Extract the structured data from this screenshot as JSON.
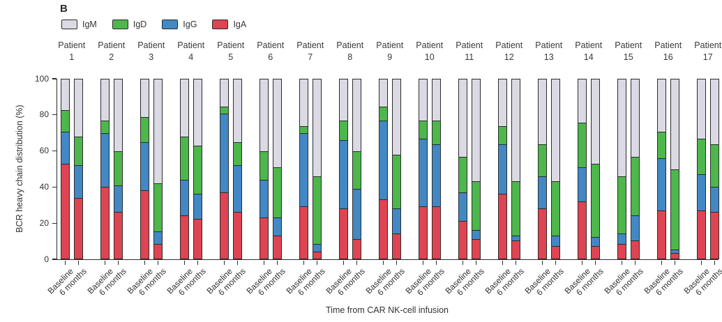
{
  "panel_label": "B",
  "chart_data": {
    "type": "bar",
    "variant": "stacked-percent",
    "title": "",
    "ylabel": "BCR heavy chain distribution (%)",
    "xlabel": "Time from CAR NK-cell infusion",
    "ylim": [
      0,
      100
    ],
    "yticks": [
      0,
      20,
      40,
      60,
      80,
      100
    ],
    "grid": false,
    "legend_position": "top-left",
    "legend": [
      {
        "label": "IgM",
        "color": "#dbdae4"
      },
      {
        "label": "IgD",
        "color": "#4db74c"
      },
      {
        "label": "IgG",
        "color": "#4288c4"
      },
      {
        "label": "IgA",
        "color": "#df4452"
      }
    ],
    "colors": {
      "IgM": "#dbdae4",
      "IgD": "#4db74c",
      "IgG": "#4288c4",
      "IgA": "#df4452"
    },
    "stack_order_bottom_to_top": [
      "IgA",
      "IgG",
      "IgD",
      "IgM"
    ],
    "timepoints": [
      "Baseline",
      "6 months"
    ],
    "group_label_prefix": "Patient",
    "patients": [
      {
        "number": "1",
        "values": {
          "Baseline": {
            "IgA": 53,
            "IgG": 18,
            "IgD": 12,
            "IgM": 17
          },
          "6 months": {
            "IgA": 34,
            "IgG": 18,
            "IgD": 16,
            "IgM": 32
          }
        }
      },
      {
        "number": "2",
        "values": {
          "Baseline": {
            "IgA": 40,
            "IgG": 30,
            "IgD": 7,
            "IgM": 23
          },
          "6 months": {
            "IgA": 26,
            "IgG": 15,
            "IgD": 19,
            "IgM": 40
          }
        }
      },
      {
        "number": "3",
        "values": {
          "Baseline": {
            "IgA": 38,
            "IgG": 27,
            "IgD": 14,
            "IgM": 21
          },
          "6 months": {
            "IgA": 8,
            "IgG": 7,
            "IgD": 27,
            "IgM": 58
          }
        }
      },
      {
        "number": "4",
        "values": {
          "Baseline": {
            "IgA": 24,
            "IgG": 20,
            "IgD": 24,
            "IgM": 32
          },
          "6 months": {
            "IgA": 22,
            "IgG": 14,
            "IgD": 27,
            "IgM": 37
          }
        }
      },
      {
        "number": "5",
        "values": {
          "Baseline": {
            "IgA": 37,
            "IgG": 44,
            "IgD": 4,
            "IgM": 15
          },
          "6 months": {
            "IgA": 26,
            "IgG": 26,
            "IgD": 13,
            "IgM": 35
          }
        }
      },
      {
        "number": "6",
        "values": {
          "Baseline": {
            "IgA": 23,
            "IgG": 21,
            "IgD": 16,
            "IgM": 40
          },
          "6 months": {
            "IgA": 13,
            "IgG": 10,
            "IgD": 28,
            "IgM": 49
          }
        }
      },
      {
        "number": "7",
        "values": {
          "Baseline": {
            "IgA": 29,
            "IgG": 41,
            "IgD": 4,
            "IgM": 26
          },
          "6 months": {
            "IgA": 4,
            "IgG": 4,
            "IgD": 38,
            "IgM": 54
          }
        }
      },
      {
        "number": "8",
        "values": {
          "Baseline": {
            "IgA": 28,
            "IgG": 38,
            "IgD": 11,
            "IgM": 23
          },
          "6 months": {
            "IgA": 11,
            "IgG": 28,
            "IgD": 21,
            "IgM": 40
          }
        }
      },
      {
        "number": "9",
        "values": {
          "Baseline": {
            "IgA": 33,
            "IgG": 44,
            "IgD": 8,
            "IgM": 15
          },
          "6 months": {
            "IgA": 14,
            "IgG": 14,
            "IgD": 30,
            "IgM": 42
          }
        }
      },
      {
        "number": "10",
        "values": {
          "Baseline": {
            "IgA": 29,
            "IgG": 38,
            "IgD": 10,
            "IgM": 23
          },
          "6 months": {
            "IgA": 29,
            "IgG": 35,
            "IgD": 13,
            "IgM": 23
          }
        }
      },
      {
        "number": "11",
        "values": {
          "Baseline": {
            "IgA": 21,
            "IgG": 16,
            "IgD": 20,
            "IgM": 43
          },
          "6 months": {
            "IgA": 11,
            "IgG": 5,
            "IgD": 27,
            "IgM": 57
          }
        }
      },
      {
        "number": "12",
        "values": {
          "Baseline": {
            "IgA": 36,
            "IgG": 28,
            "IgD": 10,
            "IgM": 26
          },
          "6 months": {
            "IgA": 10,
            "IgG": 3,
            "IgD": 30,
            "IgM": 57
          }
        }
      },
      {
        "number": "13",
        "values": {
          "Baseline": {
            "IgA": 28,
            "IgG": 18,
            "IgD": 18,
            "IgM": 36
          },
          "6 months": {
            "IgA": 7,
            "IgG": 6,
            "IgD": 30,
            "IgM": 57
          }
        }
      },
      {
        "number": "14",
        "values": {
          "Baseline": {
            "IgA": 32,
            "IgG": 19,
            "IgD": 25,
            "IgM": 24
          },
          "6 months": {
            "IgA": 7,
            "IgG": 5,
            "IgD": 41,
            "IgM": 47
          }
        }
      },
      {
        "number": "15",
        "values": {
          "Baseline": {
            "IgA": 8,
            "IgG": 6,
            "IgD": 32,
            "IgM": 54
          },
          "6 months": {
            "IgA": 10,
            "IgG": 14,
            "IgD": 33,
            "IgM": 43
          }
        }
      },
      {
        "number": "16",
        "values": {
          "Baseline": {
            "IgA": 27,
            "IgG": 29,
            "IgD": 15,
            "IgM": 29
          },
          "6 months": {
            "IgA": 3,
            "IgG": 2,
            "IgD": 45,
            "IgM": 50
          }
        }
      },
      {
        "number": "17",
        "values": {
          "Baseline": {
            "IgA": 27,
            "IgG": 20,
            "IgD": 20,
            "IgM": 33
          },
          "6 months": {
            "IgA": 26,
            "IgG": 14,
            "IgD": 24,
            "IgM": 36
          }
        }
      }
    ]
  }
}
